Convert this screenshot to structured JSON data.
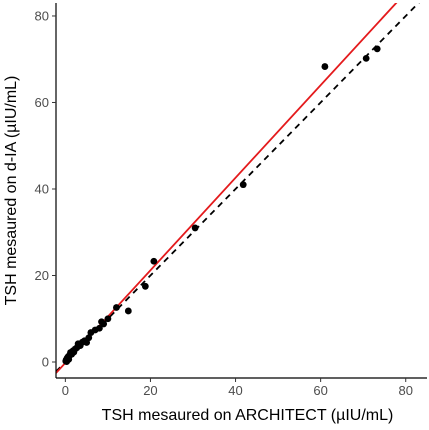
{
  "chart_data": {
    "type": "scatter",
    "xlabel": "TSH mesaured on ARCHITECT (µIU/mL)",
    "ylabel": "TSH mesaured on d-IA (µIU/mL)",
    "xlim": [
      -2.2,
      85
    ],
    "ylim": [
      -3.7,
      83
    ],
    "xticks": [
      0,
      20,
      40,
      60,
      80
    ],
    "yticks": [
      0,
      20,
      40,
      60,
      80
    ],
    "grid": false,
    "point_color": "#000000",
    "identity_line": {
      "x": [
        -2.2,
        85
      ],
      "y": [
        -2.2,
        85
      ],
      "color": "#000000",
      "style": "dashed"
    },
    "regression_line": {
      "slope": 1.07,
      "intercept": -0.2,
      "color": "#e41a1c",
      "style": "solid"
    },
    "points": [
      {
        "x": 0.1,
        "y": 0.2
      },
      {
        "x": 0.2,
        "y": 0.5
      },
      {
        "x": 0.3,
        "y": 0.1
      },
      {
        "x": 0.4,
        "y": 0.8
      },
      {
        "x": 0.5,
        "y": 1.0
      },
      {
        "x": 0.7,
        "y": 1.3
      },
      {
        "x": 0.8,
        "y": 0.6
      },
      {
        "x": 1.0,
        "y": 1.5
      },
      {
        "x": 1.2,
        "y": 2.2
      },
      {
        "x": 1.5,
        "y": 1.8
      },
      {
        "x": 1.8,
        "y": 2.6
      },
      {
        "x": 2.0,
        "y": 2.3
      },
      {
        "x": 2.3,
        "y": 3.0
      },
      {
        "x": 2.7,
        "y": 3.3
      },
      {
        "x": 3.0,
        "y": 4.2
      },
      {
        "x": 3.5,
        "y": 3.8
      },
      {
        "x": 4.0,
        "y": 4.6
      },
      {
        "x": 4.5,
        "y": 4.9
      },
      {
        "x": 5.0,
        "y": 4.5
      },
      {
        "x": 5.5,
        "y": 5.6
      },
      {
        "x": 6.0,
        "y": 6.8
      },
      {
        "x": 7.0,
        "y": 7.4
      },
      {
        "x": 8.0,
        "y": 7.8
      },
      {
        "x": 8.5,
        "y": 9.3
      },
      {
        "x": 9.0,
        "y": 8.8
      },
      {
        "x": 10.0,
        "y": 10.0
      },
      {
        "x": 12.0,
        "y": 12.6
      },
      {
        "x": 14.8,
        "y": 11.8
      },
      {
        "x": 18.8,
        "y": 17.5
      },
      {
        "x": 20.8,
        "y": 23.3
      },
      {
        "x": 30.5,
        "y": 31.0
      },
      {
        "x": 41.8,
        "y": 41.0
      },
      {
        "x": 61.0,
        "y": 68.3
      },
      {
        "x": 70.7,
        "y": 70.2
      },
      {
        "x": 73.3,
        "y": 72.4
      }
    ]
  }
}
